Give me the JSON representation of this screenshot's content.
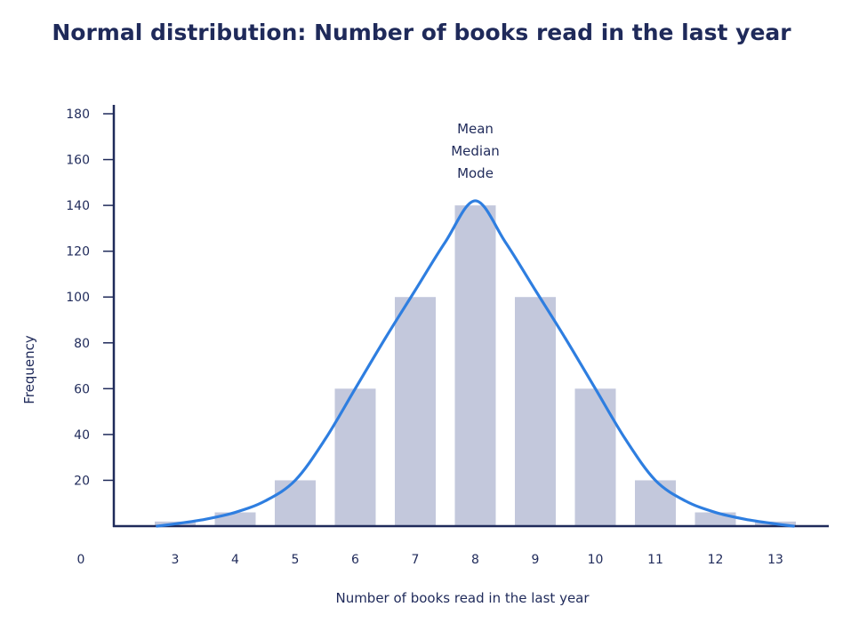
{
  "chart_data": {
    "type": "bar",
    "title": "Normal distribution: Number of books read in the last year",
    "xlabel": "Number of books read in the last year",
    "ylabel": "Frequency",
    "categories": [
      "3",
      "4",
      "5",
      "6",
      "7",
      "8",
      "9",
      "10",
      "11",
      "12",
      "13"
    ],
    "values": [
      2,
      6,
      20,
      60,
      100,
      140,
      100,
      60,
      20,
      6,
      2
    ],
    "x_origin_label": "0",
    "yticks": [
      20,
      40,
      60,
      80,
      100,
      120,
      140,
      160,
      180
    ],
    "ylim": [
      0,
      180
    ],
    "annotation_lines": [
      "Mean",
      "Median",
      "Mode"
    ],
    "curve": {
      "type": "line",
      "x": [
        2.7,
        3,
        3.5,
        4,
        4.5,
        5,
        5.5,
        6,
        6.5,
        7,
        7.5,
        8,
        8.5,
        9,
        9.5,
        10,
        10.5,
        11,
        11.5,
        12,
        12.5,
        13,
        13.3
      ],
      "y": [
        0,
        1,
        3,
        6,
        11,
        20,
        38,
        60,
        82,
        103,
        124,
        142,
        124,
        103,
        82,
        60,
        38,
        20,
        11,
        6,
        3,
        1,
        0
      ]
    },
    "colors": {
      "bar": "#c3c8dc",
      "curve": "#2e7ee0",
      "axis": "#1f2a5a",
      "text": "#1f2a5a"
    }
  }
}
